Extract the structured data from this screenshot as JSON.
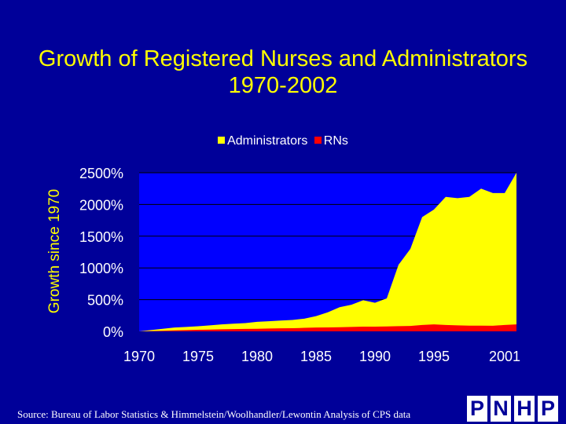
{
  "slide": {
    "title_line1": "Growth of Registered Nurses and Administrators",
    "title_line2": "1970-2002",
    "source": "Source: Bureau of Labor Statistics & Himmelstein/Woolhandler/Lewontin Analysis of CPS data",
    "logo_letters": [
      "P",
      "N",
      "H",
      "P"
    ]
  },
  "chart_data": {
    "type": "area",
    "ylabel": "Growth since 1970",
    "ylim": [
      0,
      2500
    ],
    "yticks": [
      0,
      500,
      1000,
      1500,
      2000,
      2500
    ],
    "ytick_labels": [
      "0%",
      "500%",
      "1000%",
      "1500%",
      "2000%",
      "2500%"
    ],
    "xlim": [
      1970,
      2002
    ],
    "xticks": [
      1970,
      1975,
      1980,
      1985,
      1990,
      1995,
      2001
    ],
    "xtick_labels": [
      "1970",
      "1975",
      "1980",
      "1985",
      "1990",
      "1995",
      "2001"
    ],
    "grid": true,
    "legend": "top",
    "x": [
      1970,
      1971,
      1972,
      1973,
      1974,
      1975,
      1976,
      1977,
      1978,
      1979,
      1980,
      1981,
      1982,
      1983,
      1984,
      1985,
      1986,
      1987,
      1988,
      1989,
      1990,
      1991,
      1992,
      1993,
      1994,
      1995,
      1996,
      1997,
      1998,
      1999,
      2000,
      2001,
      2002
    ],
    "series": [
      {
        "name": "Administrators",
        "color": "#FFFF00",
        "values": [
          0,
          20,
          40,
          60,
          70,
          80,
          95,
          110,
          120,
          130,
          150,
          160,
          170,
          180,
          200,
          240,
          300,
          380,
          420,
          490,
          450,
          520,
          1050,
          1300,
          1800,
          1920,
          2120,
          2100,
          2120,
          2250,
          2180,
          2180,
          2500
        ]
      },
      {
        "name": "RNs",
        "color": "#FF0000",
        "values": [
          0,
          5,
          10,
          15,
          20,
          25,
          28,
          32,
          35,
          38,
          40,
          45,
          48,
          50,
          55,
          60,
          62,
          65,
          70,
          75,
          75,
          78,
          82,
          85,
          100,
          110,
          100,
          95,
          90,
          90,
          88,
          100,
          110
        ]
      }
    ]
  }
}
